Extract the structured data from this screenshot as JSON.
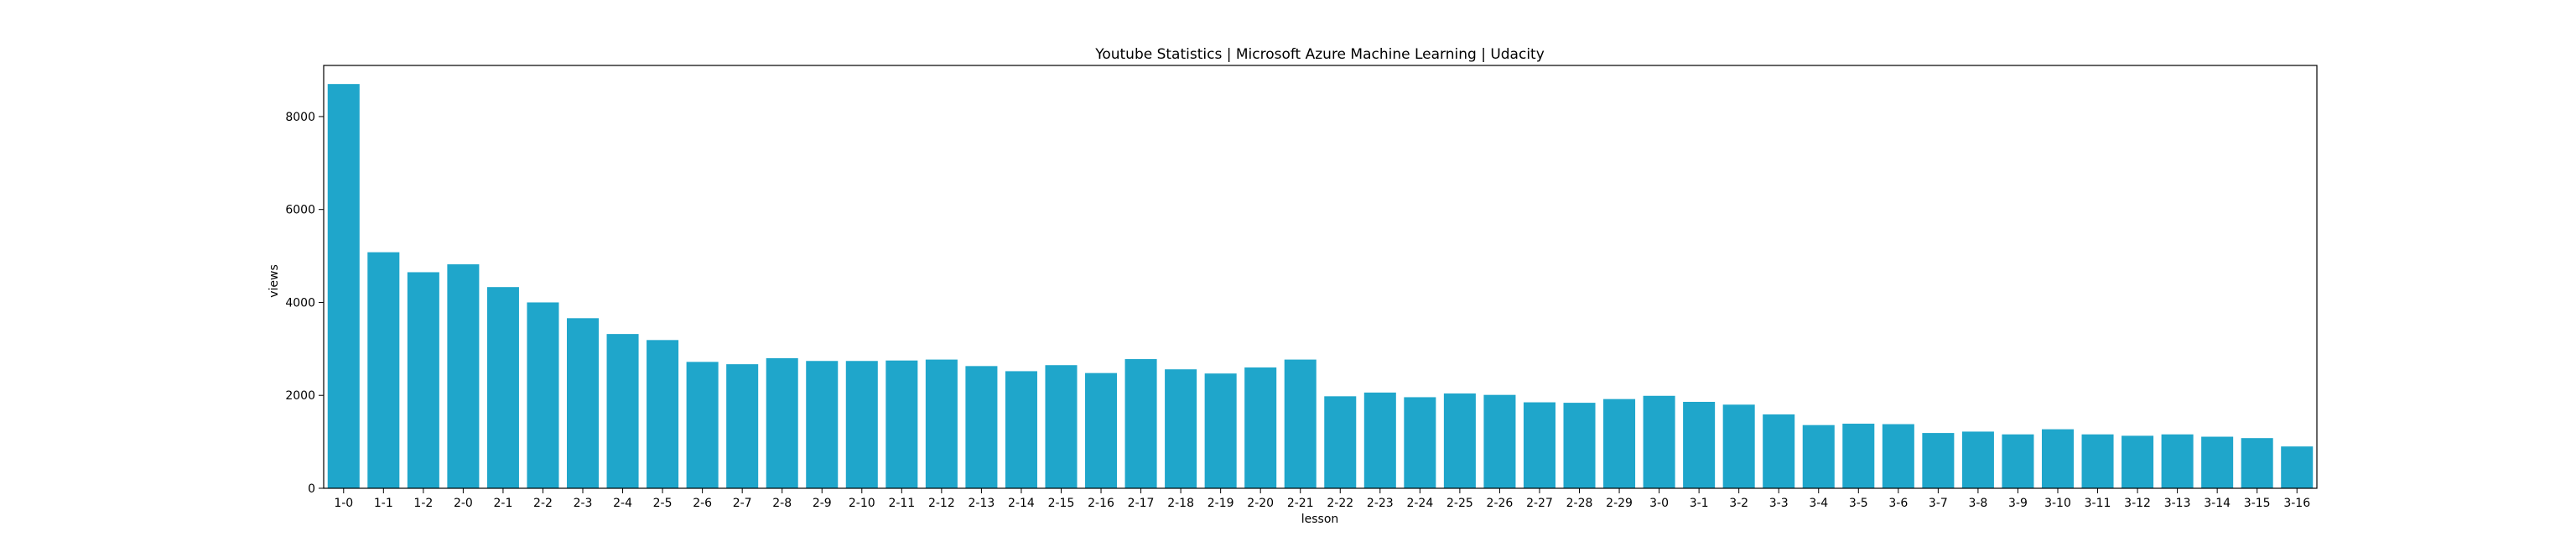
{
  "chart_data": {
    "type": "bar",
    "title": "Youtube Statistics | Microsoft Azure Machine Learning | Udacity",
    "xlabel": "lesson",
    "ylabel": "views",
    "ylim": [
      0,
      9100
    ],
    "yticks": [
      0,
      2000,
      4000,
      6000,
      8000
    ],
    "grid": false,
    "bar_color": "#1fa6cb",
    "categories": [
      "1-0",
      "1-1",
      "1-2",
      "2-0",
      "2-1",
      "2-2",
      "2-3",
      "2-4",
      "2-5",
      "2-6",
      "2-7",
      "2-8",
      "2-9",
      "2-10",
      "2-11",
      "2-12",
      "2-13",
      "2-14",
      "2-15",
      "2-16",
      "2-17",
      "2-18",
      "2-19",
      "2-20",
      "2-21",
      "2-22",
      "2-23",
      "2-24",
      "2-25",
      "2-26",
      "2-27",
      "2-28",
      "2-29",
      "3-0",
      "3-1",
      "3-2",
      "3-3",
      "3-4",
      "3-5",
      "3-6",
      "3-7",
      "3-8",
      "3-9",
      "3-10",
      "3-11",
      "3-12",
      "3-13",
      "3-14",
      "3-15",
      "3-16"
    ],
    "values": [
      8700,
      5080,
      4650,
      4820,
      4330,
      4000,
      3660,
      3320,
      3190,
      2720,
      2670,
      2800,
      2740,
      2740,
      2750,
      2770,
      2630,
      2520,
      2650,
      2480,
      2780,
      2560,
      2470,
      2600,
      2770,
      1980,
      2060,
      1960,
      2040,
      2010,
      1850,
      1840,
      1920,
      1990,
      1860,
      1800,
      1590,
      1360,
      1390,
      1380,
      1190,
      1220,
      1160,
      1270,
      1160,
      1130,
      1160,
      1110,
      1080,
      900
    ]
  }
}
